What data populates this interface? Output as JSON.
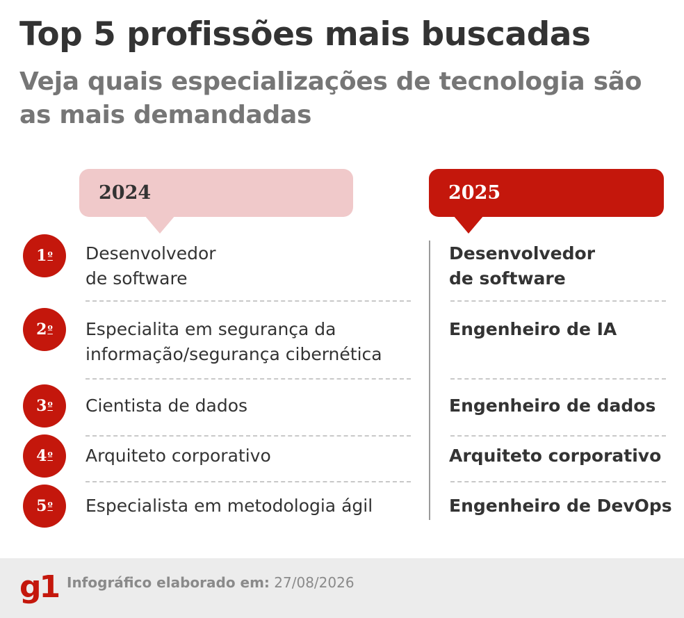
{
  "header": {
    "title": "Top 5 profissões mais buscadas",
    "subtitle": "Veja quais especializações de tecnologia são as mais demandadas"
  },
  "columns": {
    "left_year": "2024",
    "right_year": "2025"
  },
  "rankings": [
    {
      "rank": "1",
      "ordinal": "º",
      "y2024": "Desenvolvedor\nde software",
      "y2025": "Desenvolvedor\nde software"
    },
    {
      "rank": "2",
      "ordinal": "º",
      "y2024": "Especialita em segurança da informação/segurança cibernética",
      "y2025": "Engenheiro de IA"
    },
    {
      "rank": "3",
      "ordinal": "º",
      "y2024": "Cientista de dados",
      "y2025": "Engenheiro de dados"
    },
    {
      "rank": "4",
      "ordinal": "º",
      "y2024": "Arquiteto corporativo",
      "y2025": "Arquiteto corporativo"
    },
    {
      "rank": "5",
      "ordinal": "º",
      "y2024": "Especialista em metodologia ágil",
      "y2025": "Engenheiro de DevOps"
    }
  ],
  "footer": {
    "logo": "g1",
    "label": "Infográfico elaborado em:",
    "date": "27/08/2026"
  },
  "colors": {
    "accent": "#c4170c",
    "accent_light": "#f0c9ca",
    "text": "#333333",
    "subtitle": "#767676"
  }
}
